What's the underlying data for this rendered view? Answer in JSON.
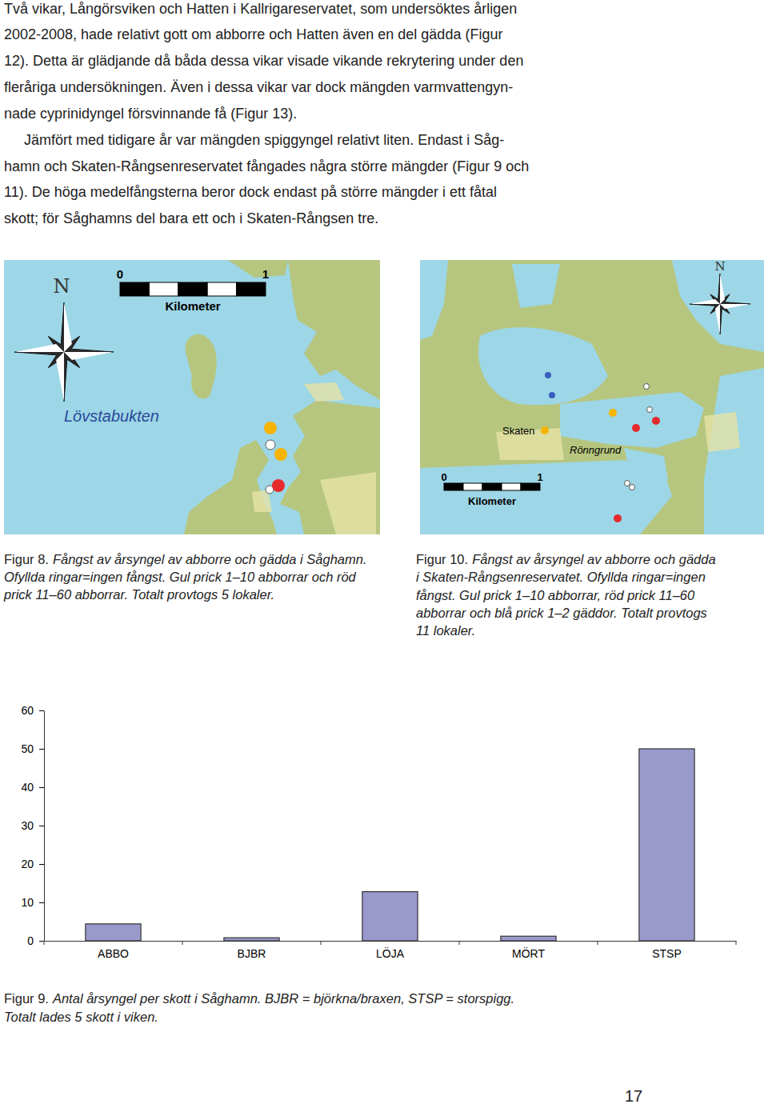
{
  "body": {
    "lines": [
      "Två vikar, Långörsviken och Hatten i Kallrigareservatet, som undersöktes årligen",
      "2002-2008, hade relativt gott om abborre och Hatten även en del gädda (Figur",
      "12). Detta är glädjande då båda dessa vikar visade vikande rekrytering under den",
      "fleråriga undersökningen. Även i dessa vikar var dock mängden varmvattengyn-",
      "nade cyprinidyngel försvinnande få (Figur 13).",
      "Jämfört med tidigare år var mängden spiggyngel relativt liten. Endast i Såg-",
      "hamn och Skaten-Rångsenreservatet fångades några större mängder (Figur 9 och",
      "11). De höga medelfångsterna beror dock endast på större mängder i ett fåtal",
      "skott; för Såghamns del bara ett och i Skaten-Rångsen tre."
    ]
  },
  "maps": [
    {
      "north": "N",
      "scale": {
        "values": [
          0,
          1
        ],
        "unit": "Kilometer"
      },
      "places": [
        "Lövstabukten"
      ]
    },
    {
      "north": "N",
      "scale": {
        "values": [
          0,
          1
        ],
        "unit": "Kilometer"
      },
      "places": [
        "Skaten",
        "Rönngrund"
      ]
    }
  ],
  "captions": [
    {
      "label": "Figur 8.",
      "lines": [
        "Fångst av årsyngel av abborre och gädda i Såghamn.",
        "Ofyllda ringar=ingen fångst. Gul prick 1–10 abborrar och röd",
        "prick 11–60 abborrar. Totalt provtogs 5 lokaler."
      ]
    },
    {
      "label": "Figur 10.",
      "lines": [
        "Fångst av årsyngel av abborre och gädda",
        "i Skaten-Rångsenreservatet. Ofyllda ringar=ingen",
        "fångst. Gul prick 1–10 abborrar, röd prick 11–60",
        "abborrar och blå prick 1–2 gäddor. Totalt provtogs",
        "11 lokaler."
      ]
    },
    {
      "label": "Figur 9.",
      "lines": [
        "Antal årsyngel per skott i Såghamn. BJBR = björkna/braxen, STSP = storspigg.",
        "Totalt lades 5 skott i viken."
      ]
    }
  ],
  "chart_data": {
    "type": "bar",
    "categories": [
      "ABBO",
      "BJBR",
      "LÖJA",
      "MÖRT",
      "STSP"
    ],
    "values": [
      4.4,
      0.8,
      12.8,
      1.2,
      50
    ],
    "color": "#9999cc",
    "ylim": [
      0,
      60
    ],
    "yticks": [
      0,
      10,
      20,
      30,
      40,
      50,
      60
    ],
    "grid": false
  },
  "page_number": "17"
}
